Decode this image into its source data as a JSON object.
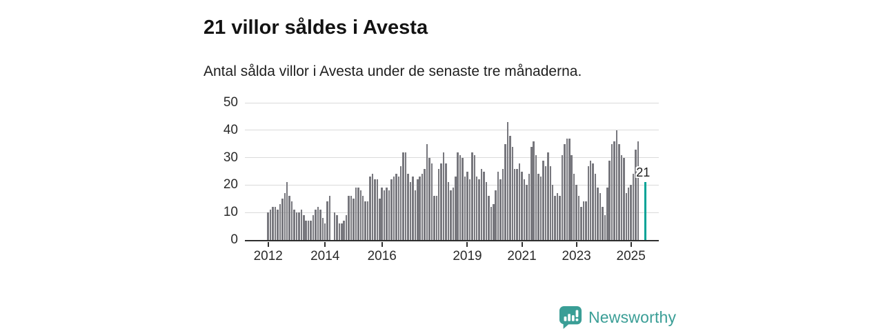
{
  "header": {
    "title": "21 villor såldes i Avesta",
    "subtitle": "Antal sålda villor i Avesta under de senaste tre månaderna."
  },
  "chart_data": {
    "type": "bar",
    "title": "21 villor såldes i Avesta",
    "subtitle": "Antal sålda villor i Avesta under de senaste tre månaderna.",
    "ylim": [
      0,
      50
    ],
    "y_ticks": [
      0,
      10,
      20,
      30,
      40,
      50
    ],
    "grid": true,
    "bar_color": "#77777d",
    "x_ticks": [
      {
        "label": "2012",
        "index": 0
      },
      {
        "label": "2014",
        "index": 24
      },
      {
        "label": "2016",
        "index": 48
      },
      {
        "label": "2019",
        "index": 84
      },
      {
        "label": "2021",
        "index": 107
      },
      {
        "label": "2023",
        "index": 130
      },
      {
        "label": "2025",
        "index": 153
      }
    ],
    "values": [
      10,
      11,
      12,
      12,
      11,
      13,
      15,
      17,
      21,
      16,
      14,
      11,
      10,
      10,
      11,
      9,
      7,
      7,
      7,
      9,
      11,
      12,
      11,
      8,
      6,
      14,
      16,
      null,
      10,
      9,
      6,
      6,
      7,
      9,
      16,
      16,
      15,
      19,
      19,
      18,
      16,
      14,
      14,
      23,
      24,
      22,
      22,
      15,
      19,
      18,
      19,
      18,
      22,
      23,
      24,
      23,
      27,
      32,
      32,
      24,
      21,
      23,
      18,
      22,
      23,
      24,
      26,
      35,
      30,
      28,
      16,
      16,
      26,
      28,
      32,
      28,
      21,
      18,
      19,
      23,
      32,
      31,
      30,
      23,
      25,
      22,
      32,
      31,
      23,
      22,
      26,
      25,
      21,
      16,
      12,
      13,
      18,
      25,
      22,
      26,
      35,
      43,
      38,
      34,
      26,
      26,
      28,
      25,
      22,
      20,
      24,
      34,
      36,
      31,
      24,
      23,
      29,
      27,
      32,
      27,
      20,
      16,
      17,
      16,
      31,
      35,
      37,
      37,
      31,
      24,
      20,
      16,
      12,
      14,
      14,
      27,
      29,
      28,
      24,
      19,
      17,
      12,
      9,
      19,
      29,
      35,
      36,
      40,
      35,
      31,
      30,
      17,
      19,
      20,
      24,
      33,
      36,
      null,
      null,
      21
    ],
    "highlight": {
      "index": 159,
      "value": 21,
      "label": "21",
      "color": "#00a396"
    }
  },
  "branding": {
    "logo_text": "Newsworthy",
    "logo_color": "#3a9e96",
    "logo_icon": "newsworthy-pin-chart-icon"
  }
}
